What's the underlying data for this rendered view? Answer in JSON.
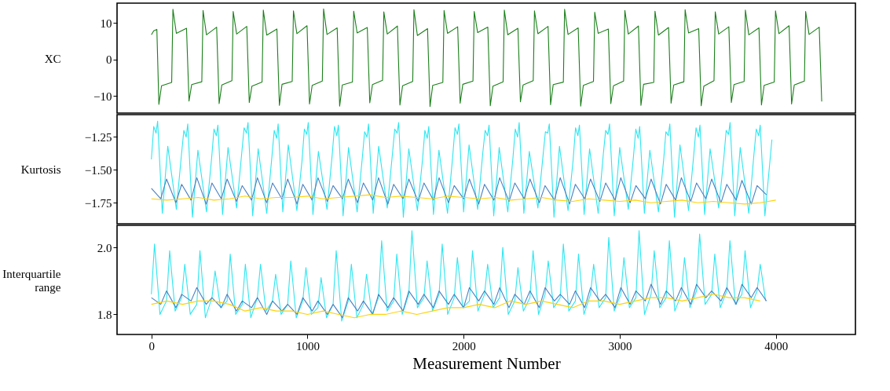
{
  "chart_data": [
    {
      "type": "line",
      "ylabel": "XC",
      "xlim": [
        -220,
        4510
      ],
      "ylim": [
        -14.7,
        15.5
      ],
      "yticks": [
        {
          "value": 10,
          "label": "10"
        },
        {
          "value": 0,
          "label": "0"
        },
        {
          "value": -10,
          "label": "−10"
        }
      ],
      "tick_labels": "y",
      "series": [
        {
          "color": "#1a7f1a",
          "x": [
            0,
            15,
            35,
            48,
            65,
            130,
            138,
            160,
            225,
            241,
            258,
            323,
            331,
            353,
            418,
            434,
            451,
            516,
            524,
            546,
            611,
            627,
            644,
            709,
            717,
            739,
            804,
            820,
            837,
            902,
            910,
            932,
            997,
            1013,
            1030,
            1095,
            1103,
            1125,
            1190,
            1206,
            1223,
            1288,
            1296,
            1318,
            1383,
            1399,
            1416,
            1481,
            1489,
            1511,
            1576,
            1592,
            1609,
            1674,
            1682,
            1704,
            1769,
            1785,
            1802,
            1867,
            1875,
            1897,
            1962,
            1978,
            1995,
            2060,
            2068,
            2090,
            2155,
            2171,
            2188,
            2253,
            2261,
            2283,
            2348,
            2364,
            2381,
            2446,
            2454,
            2476,
            2541,
            2557,
            2574,
            2639,
            2647,
            2669,
            2734,
            2750,
            2767,
            2832,
            2840,
            2862,
            2927,
            2943,
            2960,
            3025,
            3033,
            3055,
            3120,
            3136,
            3153,
            3218,
            3226,
            3248,
            3313,
            3329,
            3346,
            3411,
            3419,
            3441,
            3506,
            3522,
            3539,
            3604,
            3612,
            3634,
            3699,
            3715,
            3732,
            3797,
            3805,
            3827,
            3892,
            3908,
            3925,
            3990,
            3998,
            4020,
            4085,
            4101,
            4118,
            4183,
            4191,
            4213,
            4278,
            4294
          ],
          "values": [
            6.8,
            7.9,
            8.3,
            -12.3,
            -7.2,
            -6.3,
            13.8,
            7.2,
            8.6,
            -11.4,
            -6.9,
            -6.1,
            13.5,
            6.8,
            8.9,
            -12.1,
            -7.0,
            -5.8,
            13.2,
            7.0,
            9.1,
            -11.8,
            -7.3,
            -6.2,
            13.6,
            6.7,
            8.4,
            -12.6,
            -6.8,
            -6.0,
            13.4,
            7.1,
            9.3,
            -12.2,
            -7.1,
            -5.9,
            13.9,
            6.9,
            8.7,
            -12.8,
            -7.0,
            -6.2,
            13.3,
            7.3,
            8.8,
            -11.9,
            -6.9,
            -5.7,
            13.1,
            7.0,
            9.2,
            -12.5,
            -7.2,
            -6.0,
            13.7,
            6.6,
            8.5,
            -12.9,
            -7.1,
            -6.3,
            13.5,
            7.2,
            9.0,
            -12.0,
            -6.8,
            -5.9,
            13.2,
            7.4,
            8.9,
            -12.7,
            -7.3,
            -6.1,
            13.6,
            6.8,
            8.6,
            -11.6,
            -7.0,
            -5.8,
            13.4,
            7.1,
            9.1,
            -12.4,
            -6.9,
            -6.2,
            13.8,
            6.9,
            8.7,
            -12.8,
            -7.1,
            -6.0,
            13.0,
            7.2,
            8.4,
            -12.1,
            -7.2,
            -5.9,
            13.5,
            7.0,
            9.2,
            -12.6,
            -6.8,
            -6.3,
            13.3,
            6.7,
            8.8,
            -12.0,
            -7.0,
            -6.1,
            13.7,
            7.3,
            8.5,
            -12.7,
            -7.3,
            -5.8,
            13.1,
            7.0,
            9.0,
            -11.8,
            -6.9,
            -6.0,
            13.6,
            6.8,
            8.7,
            -12.5,
            -7.1,
            -6.2,
            13.4,
            7.1,
            9.3,
            -12.2,
            -7.0,
            -5.9,
            13.2,
            6.9,
            8.9,
            -11.5
          ]
        }
      ]
    },
    {
      "type": "line",
      "ylabel": "Kurtosis",
      "xlim": [
        -220,
        4510
      ],
      "ylim": [
        -1.91,
        -1.08
      ],
      "yticks": [
        {
          "value": -1.25,
          "label": "−1.25"
        },
        {
          "value": -1.5,
          "label": "−1.50"
        },
        {
          "value": -1.75,
          "label": "−1.75"
        }
      ],
      "tick_labels": "y",
      "series": [
        {
          "color": "#2ee6f0",
          "x": [
            0,
            15,
            30,
            40,
            70,
            105,
            160,
            193,
            208,
            223,
            233,
            263,
            298,
            353,
            386,
            401,
            416,
            426,
            456,
            491,
            546,
            579,
            594,
            609,
            619,
            649,
            684,
            739,
            772,
            787,
            802,
            812,
            842,
            877,
            932,
            965,
            980,
            995,
            1005,
            1035,
            1070,
            1125,
            1158,
            1173,
            1188,
            1198,
            1228,
            1263,
            1318,
            1351,
            1366,
            1381,
            1391,
            1421,
            1456,
            1511,
            1544,
            1559,
            1574,
            1584,
            1614,
            1649,
            1704,
            1737,
            1752,
            1767,
            1777,
            1807,
            1842,
            1897,
            1930,
            1945,
            1960,
            1970,
            2000,
            2035,
            2090,
            2123,
            2138,
            2153,
            2163,
            2193,
            2228,
            2283,
            2316,
            2331,
            2346,
            2356,
            2386,
            2421,
            2476,
            2509,
            2524,
            2539,
            2549,
            2579,
            2614,
            2669,
            2702,
            2717,
            2732,
            2742,
            2772,
            2807,
            2862,
            2895,
            2910,
            2925,
            2935,
            2965,
            3000,
            3055,
            3088,
            3103,
            3118,
            3128,
            3158,
            3193,
            3248,
            3281,
            3296,
            3311,
            3321,
            3351,
            3386,
            3441,
            3474,
            3489,
            3504,
            3514,
            3544,
            3579,
            3634,
            3667,
            3682,
            3697,
            3707,
            3737,
            3772,
            3827,
            3860,
            3875,
            3890,
            3900,
            3930,
            3975
          ],
          "values": [
            -1.42,
            -1.17,
            -1.22,
            -1.13,
            -1.83,
            -1.32,
            -1.8,
            -1.38,
            -1.2,
            -1.25,
            -1.15,
            -1.86,
            -1.35,
            -1.82,
            -1.41,
            -1.19,
            -1.24,
            -1.16,
            -1.84,
            -1.33,
            -1.79,
            -1.37,
            -1.18,
            -1.22,
            -1.14,
            -1.85,
            -1.34,
            -1.83,
            -1.4,
            -1.2,
            -1.26,
            -1.15,
            -1.82,
            -1.31,
            -1.81,
            -1.43,
            -1.19,
            -1.23,
            -1.14,
            -1.84,
            -1.36,
            -1.8,
            -1.39,
            -1.17,
            -1.24,
            -1.16,
            -1.85,
            -1.33,
            -1.82,
            -1.41,
            -1.21,
            -1.25,
            -1.15,
            -1.83,
            -1.32,
            -1.79,
            -1.38,
            -1.19,
            -1.22,
            -1.14,
            -1.86,
            -1.34,
            -1.81,
            -1.42,
            -1.2,
            -1.26,
            -1.17,
            -1.84,
            -1.35,
            -1.83,
            -1.4,
            -1.18,
            -1.23,
            -1.15,
            -1.82,
            -1.31,
            -1.8,
            -1.37,
            -1.2,
            -1.24,
            -1.16,
            -1.85,
            -1.33,
            -1.82,
            -1.41,
            -1.19,
            -1.25,
            -1.14,
            -1.83,
            -1.36,
            -1.79,
            -1.39,
            -1.21,
            -1.22,
            -1.15,
            -1.86,
            -1.32,
            -1.81,
            -1.42,
            -1.18,
            -1.24,
            -1.16,
            -1.84,
            -1.34,
            -1.83,
            -1.38,
            -1.2,
            -1.23,
            -1.15,
            -1.85,
            -1.33,
            -1.8,
            -1.4,
            -1.19,
            -1.26,
            -1.17,
            -1.83,
            -1.35,
            -1.82,
            -1.43,
            -1.21,
            -1.24,
            -1.15,
            -1.86,
            -1.31,
            -1.81,
            -1.39,
            -1.18,
            -1.25,
            -1.16,
            -1.84,
            -1.34,
            -1.79,
            -1.41,
            -1.2,
            -1.23,
            -1.14,
            -1.85,
            -1.33,
            -1.83,
            -1.38,
            -1.19,
            -1.24,
            -1.16,
            -1.85,
            -1.27
          ]
        },
        {
          "color": "#4a7fc0",
          "x": [
            0,
            60,
            97,
            157,
            194,
            254,
            291,
            351,
            388,
            448,
            485,
            545,
            582,
            642,
            679,
            739,
            776,
            836,
            873,
            933,
            970,
            1030,
            1067,
            1127,
            1164,
            1224,
            1261,
            1321,
            1358,
            1418,
            1455,
            1515,
            1552,
            1612,
            1649,
            1709,
            1746,
            1806,
            1843,
            1903,
            1940,
            2000,
            2037,
            2097,
            2134,
            2194,
            2231,
            2291,
            2328,
            2388,
            2425,
            2485,
            2522,
            2582,
            2619,
            2679,
            2716,
            2776,
            2813,
            2873,
            2910,
            2970,
            3007,
            3067,
            3104,
            3164,
            3201,
            3261,
            3298,
            3358,
            3395,
            3455,
            3492,
            3552,
            3589,
            3649,
            3686,
            3746,
            3783,
            3843,
            3880,
            3940
          ],
          "values": [
            -1.64,
            -1.72,
            -1.57,
            -1.75,
            -1.61,
            -1.73,
            -1.56,
            -1.76,
            -1.6,
            -1.72,
            -1.57,
            -1.74,
            -1.62,
            -1.73,
            -1.56,
            -1.75,
            -1.6,
            -1.72,
            -1.57,
            -1.76,
            -1.61,
            -1.73,
            -1.56,
            -1.74,
            -1.62,
            -1.72,
            -1.57,
            -1.75,
            -1.6,
            -1.73,
            -1.56,
            -1.76,
            -1.61,
            -1.72,
            -1.57,
            -1.74,
            -1.6,
            -1.73,
            -1.56,
            -1.75,
            -1.62,
            -1.72,
            -1.57,
            -1.76,
            -1.61,
            -1.73,
            -1.56,
            -1.74,
            -1.6,
            -1.72,
            -1.57,
            -1.75,
            -1.62,
            -1.73,
            -1.56,
            -1.76,
            -1.61,
            -1.72,
            -1.57,
            -1.74,
            -1.6,
            -1.73,
            -1.56,
            -1.75,
            -1.62,
            -1.72,
            -1.57,
            -1.76,
            -1.61,
            -1.73,
            -1.56,
            -1.74,
            -1.6,
            -1.72,
            -1.57,
            -1.75,
            -1.61,
            -1.73,
            -1.58,
            -1.76,
            -1.62,
            -1.69
          ]
        },
        {
          "color": "#ffd20a",
          "x": [
            0,
            100,
            200,
            300,
            400,
            500,
            600,
            700,
            800,
            900,
            1000,
            1100,
            1200,
            1300,
            1400,
            1500,
            1600,
            1700,
            1800,
            1900,
            2000,
            2100,
            2200,
            2300,
            2400,
            2500,
            2600,
            2700,
            2800,
            2900,
            3000,
            3100,
            3200,
            3300,
            3400,
            3500,
            3600,
            3700,
            3800,
            3900,
            4000
          ],
          "values": [
            -1.72,
            -1.73,
            -1.72,
            -1.71,
            -1.73,
            -1.72,
            -1.7,
            -1.72,
            -1.71,
            -1.71,
            -1.7,
            -1.72,
            -1.71,
            -1.7,
            -1.69,
            -1.71,
            -1.7,
            -1.71,
            -1.72,
            -1.7,
            -1.71,
            -1.72,
            -1.71,
            -1.73,
            -1.72,
            -1.71,
            -1.73,
            -1.74,
            -1.72,
            -1.73,
            -1.74,
            -1.73,
            -1.75,
            -1.74,
            -1.73,
            -1.75,
            -1.74,
            -1.75,
            -1.76,
            -1.75,
            -1.73
          ]
        }
      ]
    },
    {
      "type": "line",
      "ylabel": "Interquartile range",
      "xlabel": "Measurement Number",
      "xlim": [
        -220,
        4510
      ],
      "ylim": [
        1.74,
        2.066
      ],
      "xticks": [
        0,
        1000,
        2000,
        3000,
        4000
      ],
      "yticks": [
        {
          "value": 2.0,
          "label": "2.0"
        },
        {
          "value": 1.8,
          "label": "1.8"
        }
      ],
      "series": [
        {
          "color": "#2ee6f0",
          "x": [
            0,
            20,
            55,
            97,
            117,
            152,
            194,
            214,
            249,
            291,
            311,
            346,
            388,
            408,
            443,
            485,
            505,
            540,
            582,
            602,
            637,
            679,
            699,
            734,
            776,
            796,
            831,
            873,
            893,
            928,
            970,
            990,
            1025,
            1067,
            1087,
            1122,
            1164,
            1184,
            1219,
            1261,
            1281,
            1316,
            1358,
            1378,
            1413,
            1455,
            1475,
            1510,
            1552,
            1572,
            1607,
            1649,
            1669,
            1704,
            1746,
            1766,
            1801,
            1843,
            1863,
            1898,
            1940,
            1960,
            1995,
            2037,
            2057,
            2092,
            2134,
            2154,
            2189,
            2231,
            2251,
            2286,
            2328,
            2348,
            2383,
            2425,
            2445,
            2480,
            2522,
            2542,
            2577,
            2619,
            2639,
            2674,
            2716,
            2736,
            2771,
            2813,
            2833,
            2868,
            2910,
            2930,
            2965,
            3007,
            3027,
            3062,
            3104,
            3124,
            3159,
            3201,
            3221,
            3256,
            3298,
            3318,
            3353,
            3395,
            3415,
            3450,
            3492,
            3512,
            3547,
            3589,
            3609,
            3644,
            3686,
            3706,
            3741,
            3783,
            3803,
            3838,
            3880,
            3900,
            3935
          ],
          "values": [
            1.86,
            2.01,
            1.8,
            1.84,
            1.99,
            1.81,
            1.85,
            1.95,
            1.8,
            1.83,
            1.99,
            1.79,
            1.85,
            1.93,
            1.82,
            1.84,
            1.98,
            1.8,
            1.83,
            1.95,
            1.79,
            1.85,
            1.95,
            1.81,
            1.84,
            1.92,
            1.8,
            1.83,
            1.96,
            1.79,
            1.84,
            1.94,
            1.8,
            1.82,
            1.91,
            1.79,
            1.83,
            1.99,
            1.78,
            1.84,
            1.95,
            1.79,
            1.83,
            1.92,
            1.8,
            1.85,
            2.02,
            1.81,
            1.84,
            1.98,
            1.8,
            1.86,
            2.05,
            1.82,
            1.85,
            1.96,
            1.81,
            1.86,
            2.01,
            1.8,
            1.85,
            1.97,
            1.82,
            1.84,
            1.99,
            1.81,
            1.86,
            1.95,
            1.82,
            1.85,
            2.0,
            1.8,
            1.84,
            1.94,
            1.81,
            1.85,
            1.99,
            1.8,
            1.86,
            1.96,
            1.82,
            1.85,
            2.01,
            1.81,
            1.84,
            1.98,
            1.8,
            1.86,
            1.95,
            1.82,
            1.85,
            2.03,
            1.81,
            1.86,
            1.97,
            1.82,
            1.85,
            2.05,
            1.8,
            1.86,
            1.99,
            1.82,
            1.85,
            2.02,
            1.81,
            1.86,
            1.97,
            1.82,
            1.87,
            2.04,
            1.83,
            1.86,
            1.98,
            1.82,
            1.87,
            2.02,
            1.83,
            1.86,
            1.99,
            1.82,
            1.87,
            1.95,
            1.84
          ]
        },
        {
          "color": "#4a7fc0",
          "x": [
            0,
            60,
            97,
            157,
            194,
            254,
            291,
            351,
            388,
            448,
            485,
            545,
            582,
            642,
            679,
            739,
            776,
            836,
            873,
            933,
            970,
            1030,
            1067,
            1127,
            1164,
            1224,
            1261,
            1321,
            1358,
            1418,
            1455,
            1515,
            1552,
            1612,
            1649,
            1709,
            1746,
            1806,
            1843,
            1903,
            1940,
            2000,
            2037,
            2097,
            2134,
            2194,
            2231,
            2291,
            2328,
            2388,
            2425,
            2485,
            2522,
            2582,
            2619,
            2679,
            2716,
            2776,
            2813,
            2873,
            2910,
            2970,
            3007,
            3067,
            3104,
            3164,
            3201,
            3261,
            3298,
            3358,
            3395,
            3455,
            3492,
            3552,
            3589,
            3649,
            3686,
            3746,
            3783,
            3843,
            3880,
            3940
          ],
          "values": [
            1.85,
            1.83,
            1.87,
            1.82,
            1.86,
            1.84,
            1.88,
            1.83,
            1.85,
            1.82,
            1.86,
            1.81,
            1.84,
            1.82,
            1.85,
            1.8,
            1.84,
            1.81,
            1.83,
            1.8,
            1.85,
            1.81,
            1.84,
            1.8,
            1.83,
            1.79,
            1.85,
            1.81,
            1.84,
            1.8,
            1.86,
            1.82,
            1.85,
            1.81,
            1.87,
            1.83,
            1.86,
            1.82,
            1.87,
            1.83,
            1.86,
            1.82,
            1.88,
            1.84,
            1.87,
            1.83,
            1.88,
            1.82,
            1.86,
            1.83,
            1.87,
            1.82,
            1.88,
            1.84,
            1.86,
            1.83,
            1.87,
            1.82,
            1.88,
            1.84,
            1.86,
            1.82,
            1.88,
            1.83,
            1.87,
            1.84,
            1.89,
            1.83,
            1.87,
            1.84,
            1.88,
            1.83,
            1.89,
            1.85,
            1.87,
            1.84,
            1.88,
            1.83,
            1.89,
            1.85,
            1.88,
            1.84
          ]
        },
        {
          "color": "#ffd20a",
          "x": [
            0,
            100,
            200,
            300,
            400,
            500,
            600,
            700,
            800,
            900,
            1000,
            1100,
            1200,
            1300,
            1400,
            1500,
            1600,
            1700,
            1800,
            1900,
            2000,
            2100,
            2200,
            2300,
            2400,
            2500,
            2600,
            2700,
            2800,
            2900,
            3000,
            3100,
            3200,
            3300,
            3400,
            3500,
            3600,
            3700,
            3800,
            3900
          ],
          "values": [
            1.83,
            1.84,
            1.83,
            1.84,
            1.84,
            1.83,
            1.81,
            1.82,
            1.81,
            1.81,
            1.8,
            1.81,
            1.8,
            1.79,
            1.8,
            1.8,
            1.81,
            1.8,
            1.81,
            1.82,
            1.82,
            1.83,
            1.82,
            1.84,
            1.83,
            1.84,
            1.83,
            1.82,
            1.84,
            1.84,
            1.83,
            1.84,
            1.85,
            1.85,
            1.84,
            1.85,
            1.86,
            1.85,
            1.85,
            1.84
          ]
        }
      ]
    }
  ]
}
